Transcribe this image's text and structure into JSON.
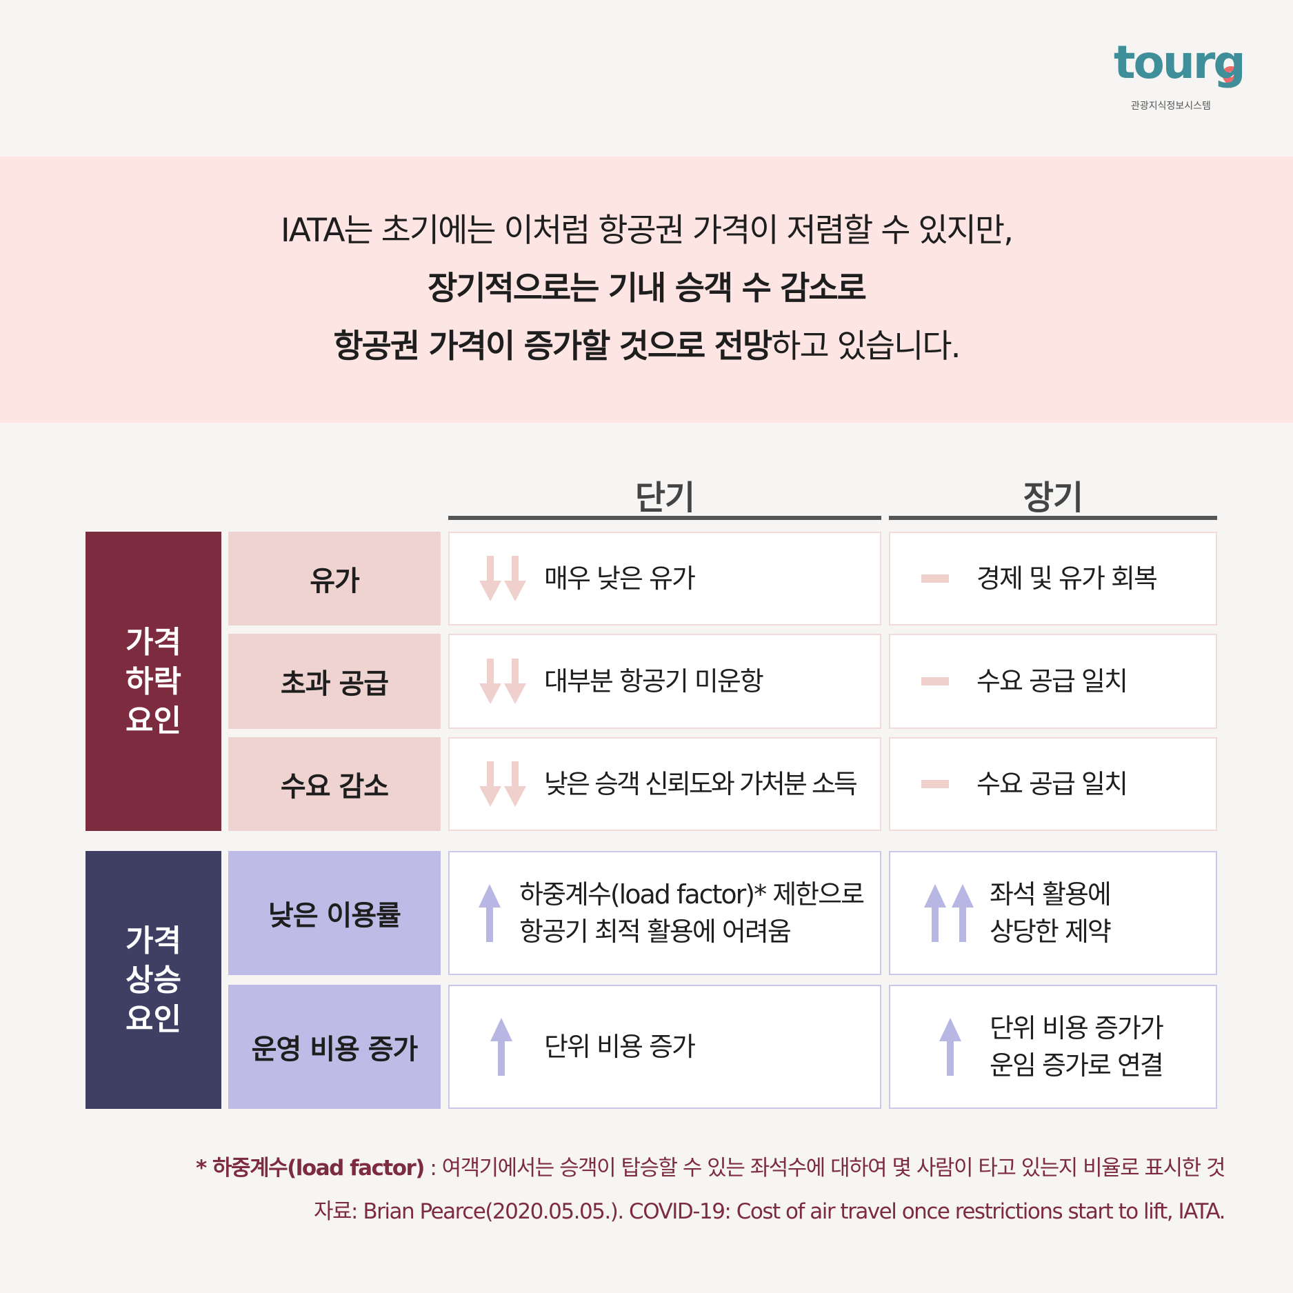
{
  "logo": {
    "name": "tourg",
    "subtitle": "관광지식정보시스템"
  },
  "header": {
    "line1": "IATA는 초기에는 이처럼 항공권 가격이 저렴할 수 있지만,",
    "line2": "장기적으로는 기내 승객 수 감소로",
    "line3_bold": "항공권 가격이 증가할 것으로 전망",
    "line3_rest": "하고 있습니다."
  },
  "table": {
    "columns": [
      "단기",
      "장기"
    ],
    "groups": [
      {
        "label": [
          "가격",
          "하락",
          "요인"
        ],
        "rows": [
          {
            "factor": "유가",
            "short": [
              "매우 낮은 유가"
            ],
            "long": [
              "경제 및 유가 회복"
            ]
          },
          {
            "factor": "초과 공급",
            "short": [
              "대부분 항공기 미운항"
            ],
            "long": [
              "수요 공급 일치"
            ]
          },
          {
            "factor": "수요 감소",
            "short": [
              "낮은 승객 신뢰도와 가처분 소득"
            ],
            "long": [
              "수요 공급 일치"
            ]
          }
        ]
      },
      {
        "label": [
          "가격",
          "상승",
          "요인"
        ],
        "rows": [
          {
            "factor": "낮은 이용률",
            "short": [
              "하중계수(load factor)* 제한으로",
              "항공기 최적 활용에 어려움"
            ],
            "long": [
              "좌석 활용에",
              "상당한 제약"
            ]
          },
          {
            "factor": "운영 비용 증가",
            "short": [
              "단위 비용 증가"
            ],
            "long": [
              "단위 비용 증가가",
              "운임 증가로 연결"
            ]
          }
        ]
      }
    ]
  },
  "footnote": {
    "term": "* 하중계수(load factor)",
    "text": ": 여객기에서는 승객이 탑승할 수 있는 좌석수에 대하여 몇 사람이 타고 있는지 비율로 표시한 것"
  },
  "source": "자료: Brian Pearce(2020.05.05.). COVID-19: Cost of air travel once restrictions start to lift, IATA."
}
